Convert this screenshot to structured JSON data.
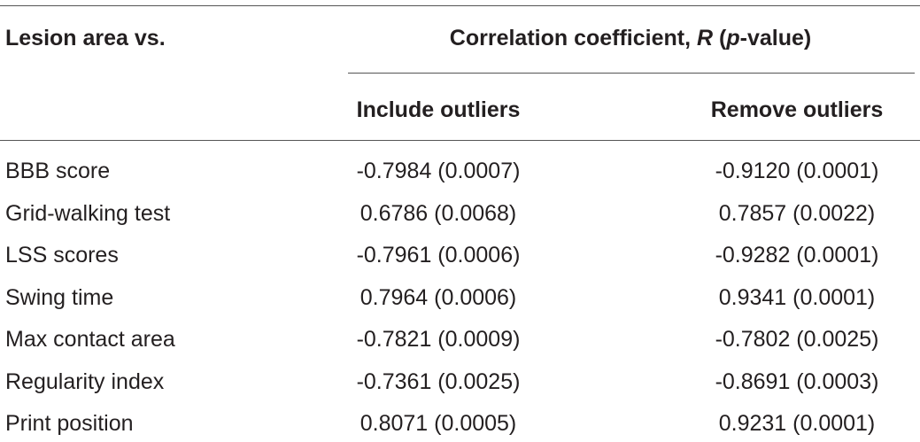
{
  "table": {
    "header": {
      "stub": "Lesion area vs.",
      "spanner": [
        "Correlation coefficient, ",
        "R",
        " (",
        "p",
        "-value)"
      ],
      "columns": [
        "Include outliers",
        "Remove outliers"
      ]
    },
    "rows": [
      [
        "BBB score",
        "-0.7984 (0.0007)",
        "-0.9120 (0.0001)"
      ],
      [
        "Grid-walking test",
        "0.6786 (0.0068)",
        "0.7857 (0.0022)"
      ],
      [
        "LSS scores",
        "-0.7961 (0.0006)",
        "-0.9282 (0.0001)"
      ],
      [
        "Swing time",
        "0.7964 (0.0006)",
        "0.9341 (0.0001)"
      ],
      [
        "Max contact area",
        "-0.7821 (0.0009)",
        "-0.7802 (0.0025)"
      ],
      [
        "Regularity index",
        "-0.7361 (0.0025)",
        "-0.8691 (0.0003)"
      ],
      [
        "Print position",
        "0.8071 (0.0005)",
        "0.9231 (0.0001)"
      ]
    ]
  }
}
